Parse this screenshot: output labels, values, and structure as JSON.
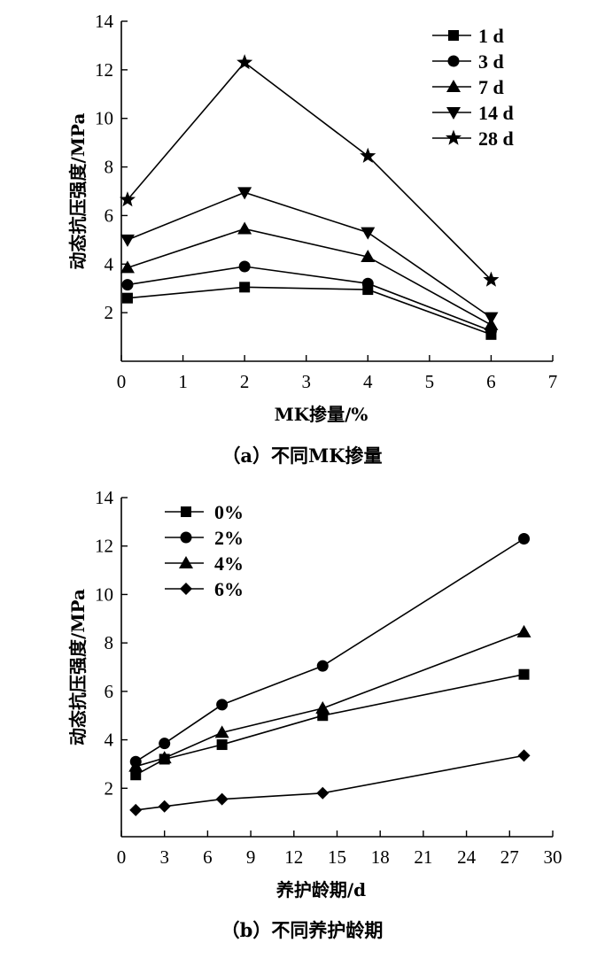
{
  "chart_data": [
    {
      "type": "line",
      "caption": "（a）不同MK掺量",
      "xlabel": "MK掺量/%",
      "ylabel": "动态抗压强度/MPa",
      "xlim": [
        0,
        7
      ],
      "ylim": [
        0,
        14
      ],
      "xticks": [
        0,
        1,
        2,
        3,
        4,
        5,
        6,
        7
      ],
      "yticks": [
        2,
        4,
        6,
        8,
        10,
        12,
        14
      ],
      "legend_position": "top-right",
      "series": [
        {
          "name": "1 d",
          "marker": "square",
          "x": [
            0.1,
            2,
            4,
            6
          ],
          "values": [
            2.6,
            3.05,
            2.95,
            1.1
          ]
        },
        {
          "name": "3 d",
          "marker": "circle",
          "x": [
            0.1,
            2,
            4,
            6
          ],
          "values": [
            3.15,
            3.9,
            3.2,
            1.25
          ]
        },
        {
          "name": "7 d",
          "marker": "triangle-up",
          "x": [
            0.1,
            2,
            4,
            6
          ],
          "values": [
            3.85,
            5.45,
            4.3,
            1.5
          ]
        },
        {
          "name": "14 d",
          "marker": "triangle-down",
          "x": [
            0.1,
            2,
            4,
            6
          ],
          "values": [
            5.0,
            6.95,
            5.3,
            1.8
          ]
        },
        {
          "name": "28 d",
          "marker": "star",
          "x": [
            0.1,
            2,
            4,
            6
          ],
          "values": [
            6.65,
            12.3,
            8.45,
            3.35
          ]
        }
      ]
    },
    {
      "type": "line",
      "caption": "（b）不同养护龄期",
      "xlabel": "养护龄期/d",
      "ylabel": "动态抗压强度/MPa",
      "xlim": [
        0,
        30
      ],
      "ylim": [
        0,
        14
      ],
      "xticks": [
        0,
        3,
        6,
        9,
        12,
        15,
        18,
        21,
        24,
        27,
        30
      ],
      "yticks": [
        2,
        4,
        6,
        8,
        10,
        12,
        14
      ],
      "legend_position": "top-left",
      "series": [
        {
          "name": "0%",
          "marker": "square",
          "x": [
            1,
            3,
            7,
            14,
            28
          ],
          "values": [
            2.55,
            3.2,
            3.8,
            5.0,
            6.7
          ]
        },
        {
          "name": "2%",
          "marker": "circle",
          "x": [
            1,
            3,
            7,
            14,
            28
          ],
          "values": [
            3.1,
            3.85,
            5.45,
            7.05,
            12.3
          ]
        },
        {
          "name": "4%",
          "marker": "triangle-up",
          "x": [
            1,
            3,
            7,
            14,
            28
          ],
          "values": [
            2.9,
            3.25,
            4.3,
            5.3,
            8.45
          ]
        },
        {
          "name": "6%",
          "marker": "diamond",
          "x": [
            1,
            3,
            7,
            14,
            28
          ],
          "values": [
            1.1,
            1.25,
            1.55,
            1.8,
            3.35
          ]
        }
      ]
    }
  ]
}
